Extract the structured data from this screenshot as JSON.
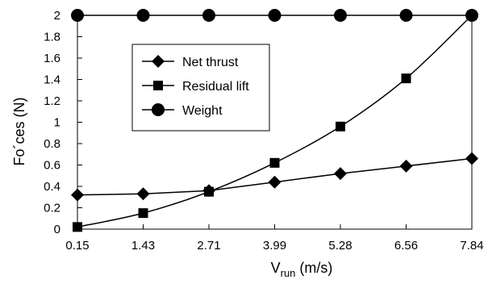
{
  "chart_data": {
    "type": "line",
    "title": "",
    "xlabel": "V",
    "xlabel_subscript": "run",
    "xlabel_unit": " (m/s)",
    "ylabel": "Fo´ces (N)",
    "x": [
      0.15,
      1.43,
      2.71,
      3.99,
      5.28,
      6.56,
      7.84
    ],
    "xtick_labels": [
      "0.15",
      "1.43",
      "2.71",
      "3.99",
      "5.28",
      "6.56",
      "7.84"
    ],
    "ylim": [
      0,
      2
    ],
    "yticks": [
      0,
      0.2,
      0.4,
      0.6,
      0.8,
      1,
      1.2,
      1.4,
      1.6,
      1.8,
      2
    ],
    "ytick_labels": [
      "0",
      "0.2",
      "0.4",
      "0.6",
      "0.8",
      "1",
      "1.2",
      "1.4",
      "1.6",
      "1.8",
      "2"
    ],
    "grid": false,
    "legend_position": "upper-left",
    "series": [
      {
        "name": "Net thrust",
        "marker": "diamond",
        "color": "#000000",
        "smooth": false,
        "values": [
          0.32,
          0.33,
          0.36,
          0.44,
          0.52,
          0.59,
          0.66
        ]
      },
      {
        "name": "Residual lift",
        "marker": "square",
        "color": "#000000",
        "smooth": true,
        "values": [
          0.02,
          0.15,
          0.35,
          0.62,
          0.96,
          1.41,
          2.0
        ]
      },
      {
        "name": "Weight",
        "marker": "circle",
        "color": "#000000",
        "smooth": false,
        "values": [
          2,
          2,
          2,
          2,
          2,
          2,
          2
        ]
      }
    ]
  }
}
